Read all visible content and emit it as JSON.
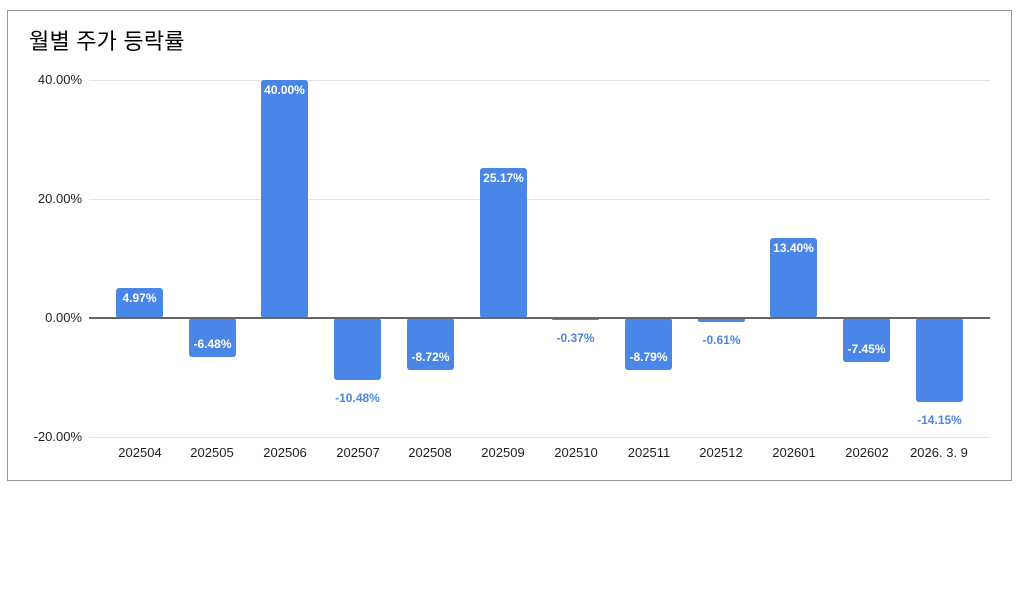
{
  "card": {
    "border_color": "#999999",
    "background": "#ffffff"
  },
  "chart_data": {
    "type": "bar",
    "title": "월별 주가 등락률",
    "categories": [
      "202504",
      "202505",
      "202506",
      "202507",
      "202508",
      "202509",
      "202510",
      "202511",
      "202512",
      "202601",
      "202602",
      "2026. 3. 9"
    ],
    "values": [
      4.97,
      -6.48,
      40.0,
      -10.48,
      -8.72,
      25.17,
      -0.37,
      -8.79,
      -0.61,
      13.4,
      -7.45,
      -14.15
    ],
    "value_labels": [
      "4.97%",
      "-6.48%",
      "40.00%",
      "-10.48%",
      "-8.72%",
      "25.17%",
      "-0.37%",
      "-8.79%",
      "-0.61%",
      "13.40%",
      "-7.45%",
      "-14.15%"
    ],
    "label_placements": [
      "inside-top",
      "inside-bottom",
      "inside-top",
      "outside-below",
      "inside-bottom",
      "inside-top",
      "outside-below",
      "inside-bottom",
      "outside-below",
      "inside-top",
      "inside-bottom",
      "outside-below"
    ],
    "xlabel": "",
    "ylabel": "",
    "y_axis": {
      "tick_labels": [
        "40.00%",
        "20.00%",
        "0.00%",
        "-20.00%"
      ],
      "tick_values": [
        40,
        20,
        0,
        -20
      ],
      "ylim": [
        -20,
        40
      ]
    },
    "grid": true,
    "legend": "none",
    "colors": {
      "bar": "#4a86e8",
      "label_inside": "#ffffff",
      "label_outside": "#4a86e8",
      "gridline": "#e2e2e2",
      "zero_line": "#666666",
      "axis_text": "#1f1f1f",
      "title_text": "#000000"
    }
  }
}
